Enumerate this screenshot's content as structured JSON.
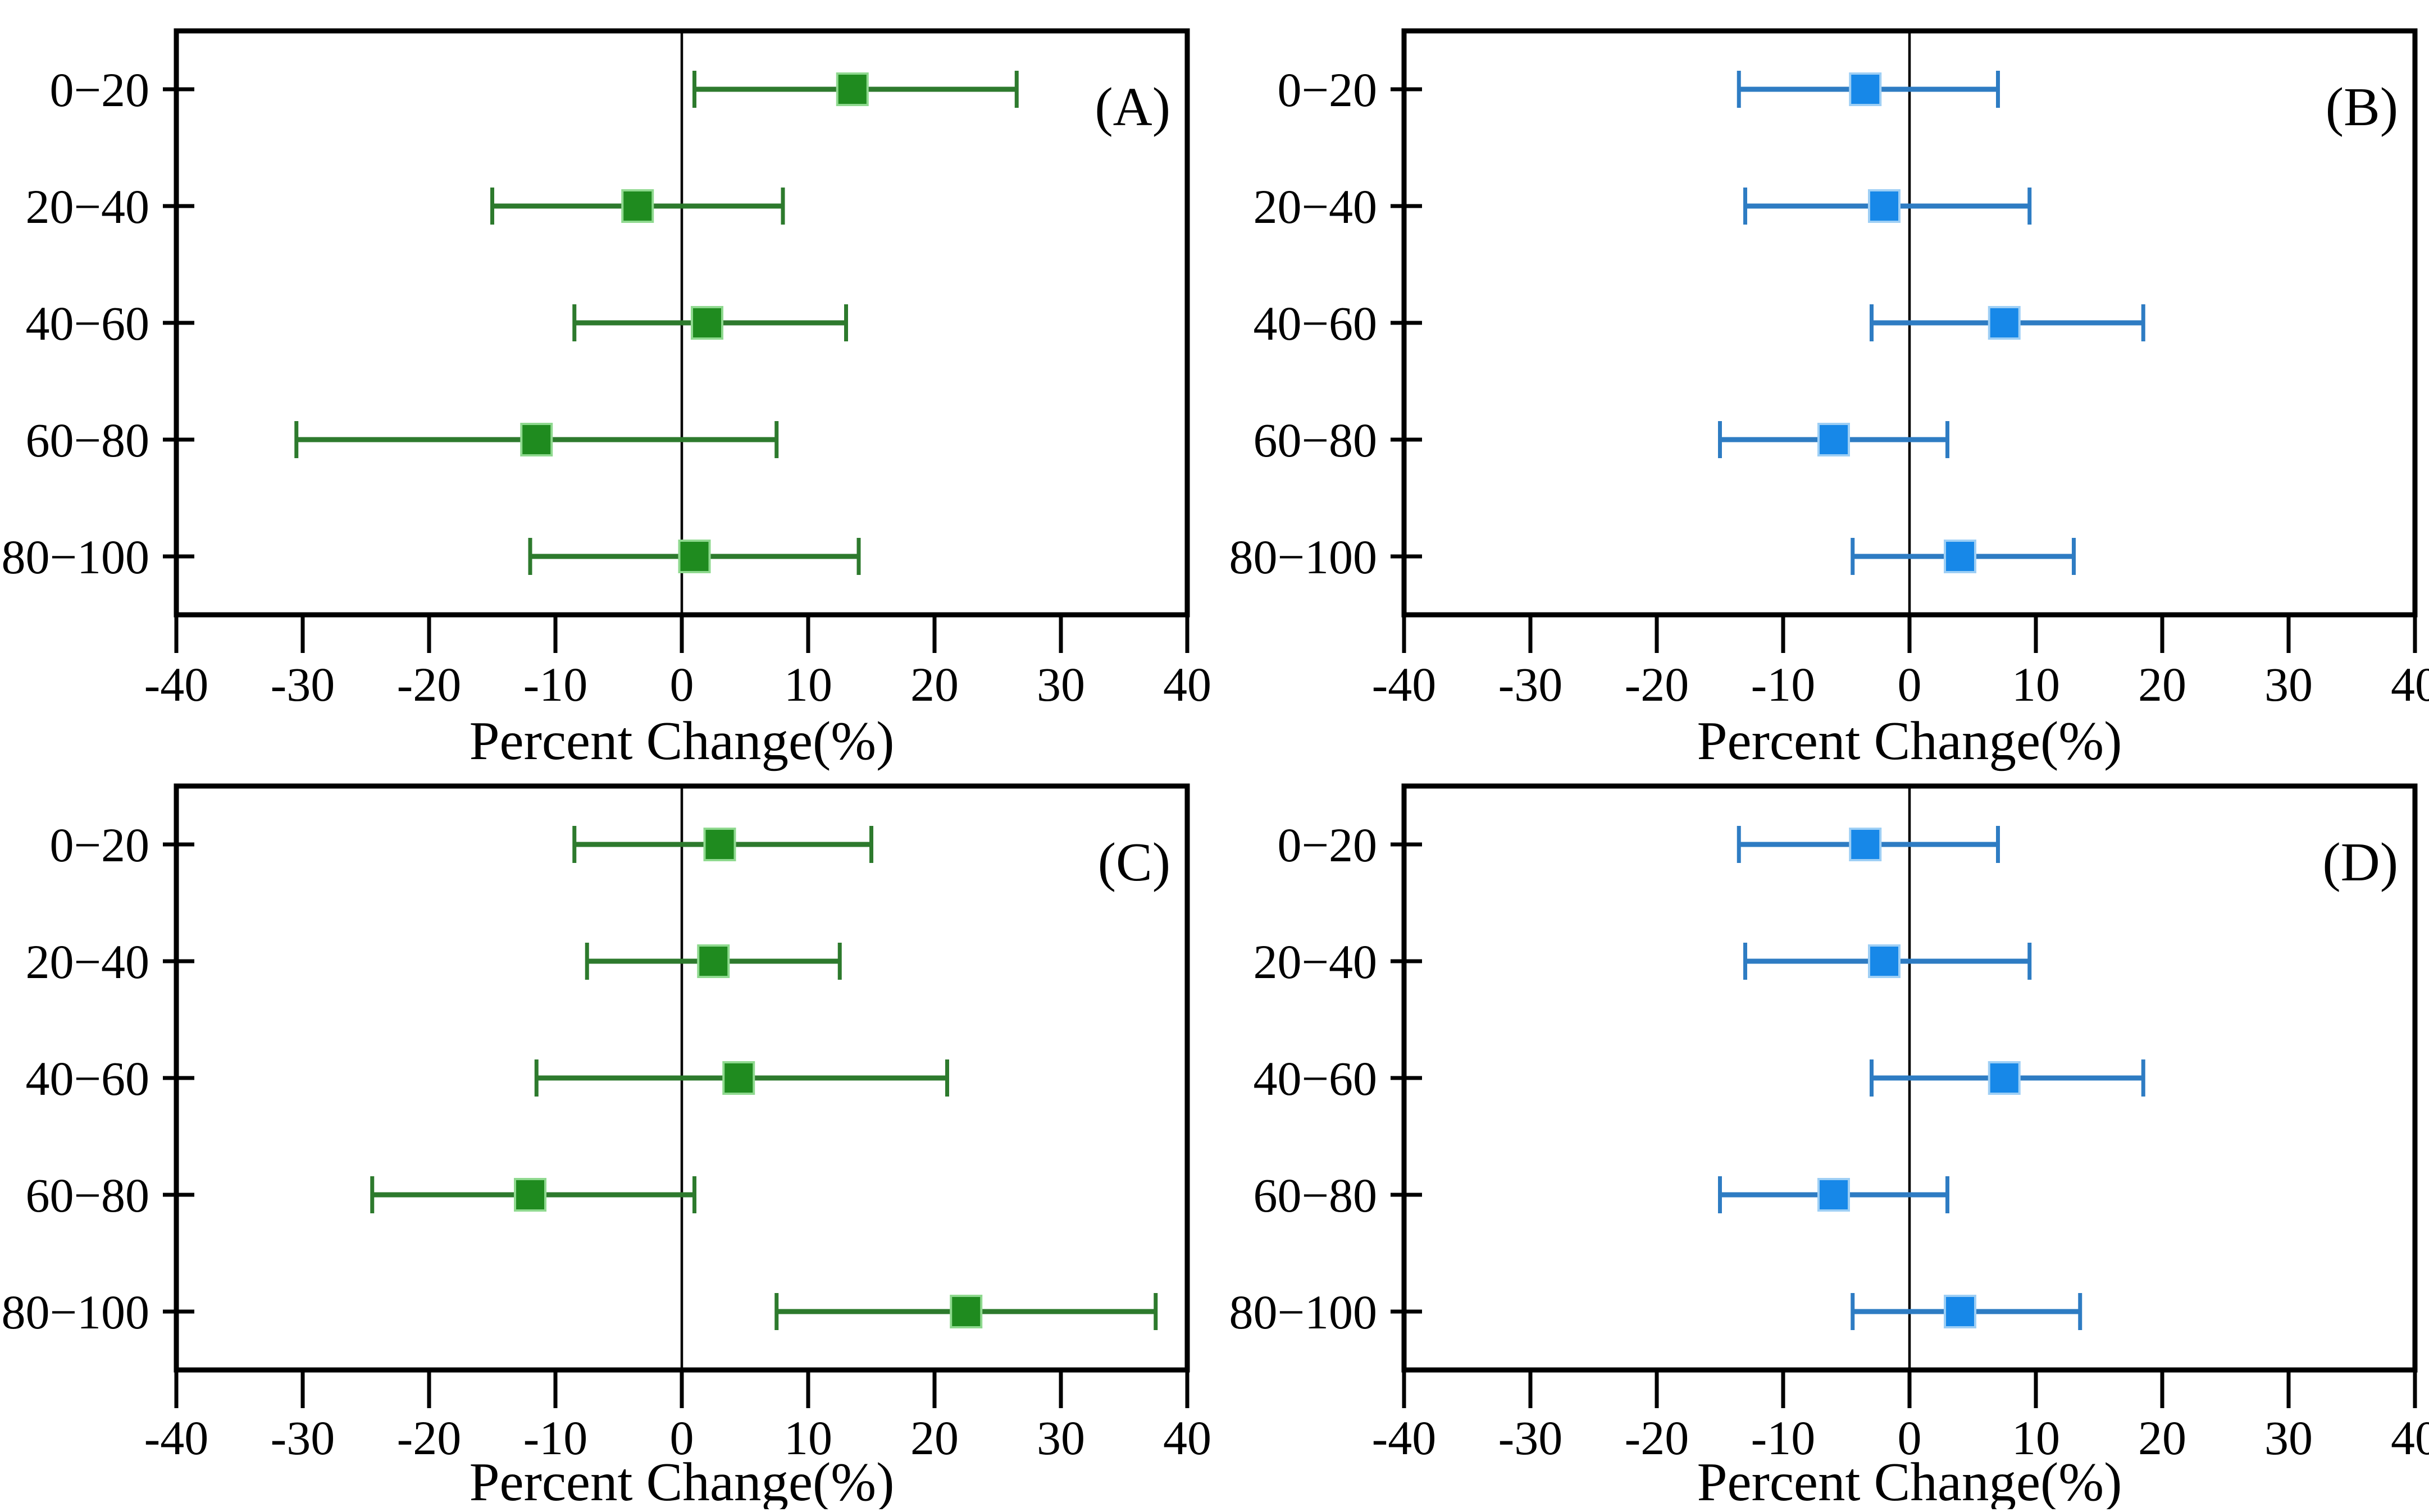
{
  "chart_data": {
    "type": "scatter",
    "subtype": "horizontal-error-bar-panels",
    "xlabel": "Percent Change(%)",
    "xlim": [
      -40,
      40
    ],
    "x_ticks": [
      -40,
      -30,
      -20,
      -10,
      0,
      10,
      20,
      30,
      40
    ],
    "categories": [
      "0−20",
      "20−40",
      "40−60",
      "60−80",
      "80−100"
    ],
    "grid": false,
    "zero_reference_line": true,
    "legend": "none",
    "panels": [
      {
        "label": "(A)",
        "marker_color": "#1f8b1f",
        "marker_edge_color": "#8fd98f",
        "line_color": "#2d7a2d",
        "points": [
          {
            "category": "0−20",
            "value": 13.5,
            "ci_low": 1.0,
            "ci_high": 26.5
          },
          {
            "category": "20−40",
            "value": -3.5,
            "ci_low": -15.0,
            "ci_high": 8.0
          },
          {
            "category": "40−60",
            "value": 2.0,
            "ci_low": -8.5,
            "ci_high": 13.0
          },
          {
            "category": "60−80",
            "value": -11.5,
            "ci_low": -30.5,
            "ci_high": 7.5
          },
          {
            "category": "80−100",
            "value": 1.0,
            "ci_low": -12.0,
            "ci_high": 14.0
          }
        ]
      },
      {
        "label": "(B)",
        "marker_color": "#1788e8",
        "marker_edge_color": "#9ecff5",
        "line_color": "#2e7cc3",
        "points": [
          {
            "category": "0−20",
            "value": -3.5,
            "ci_low": -13.5,
            "ci_high": 7.0
          },
          {
            "category": "20−40",
            "value": -2.0,
            "ci_low": -13.0,
            "ci_high": 9.5
          },
          {
            "category": "40−60",
            "value": 7.5,
            "ci_low": -3.0,
            "ci_high": 18.5
          },
          {
            "category": "60−80",
            "value": -6.0,
            "ci_low": -15.0,
            "ci_high": 3.0
          },
          {
            "category": "80−100",
            "value": 4.0,
            "ci_low": -4.5,
            "ci_high": 13.0
          }
        ]
      },
      {
        "label": "(C)",
        "marker_color": "#1f8b1f",
        "marker_edge_color": "#8fd98f",
        "line_color": "#2d7a2d",
        "points": [
          {
            "category": "0−20",
            "value": 3.0,
            "ci_low": -8.5,
            "ci_high": 15.0
          },
          {
            "category": "20−40",
            "value": 2.5,
            "ci_low": -7.5,
            "ci_high": 12.5
          },
          {
            "category": "40−60",
            "value": 4.5,
            "ci_low": -11.5,
            "ci_high": 21.0
          },
          {
            "category": "60−80",
            "value": -12.0,
            "ci_low": -24.5,
            "ci_high": 1.0
          },
          {
            "category": "80−100",
            "value": 22.5,
            "ci_low": 7.5,
            "ci_high": 37.5
          }
        ]
      },
      {
        "label": "(D)",
        "marker_color": "#1788e8",
        "marker_edge_color": "#9ecff5",
        "line_color": "#2e7cc3",
        "points": [
          {
            "category": "0−20",
            "value": -3.5,
            "ci_low": -13.5,
            "ci_high": 7.0
          },
          {
            "category": "20−40",
            "value": -2.0,
            "ci_low": -13.0,
            "ci_high": 9.5
          },
          {
            "category": "40−60",
            "value": 7.5,
            "ci_low": -3.0,
            "ci_high": 18.5
          },
          {
            "category": "60−80",
            "value": -6.0,
            "ci_low": -15.0,
            "ci_high": 3.0
          },
          {
            "category": "80−100",
            "value": 4.0,
            "ci_low": -4.5,
            "ci_high": 13.5
          }
        ]
      }
    ],
    "axis_color": "#000000"
  }
}
